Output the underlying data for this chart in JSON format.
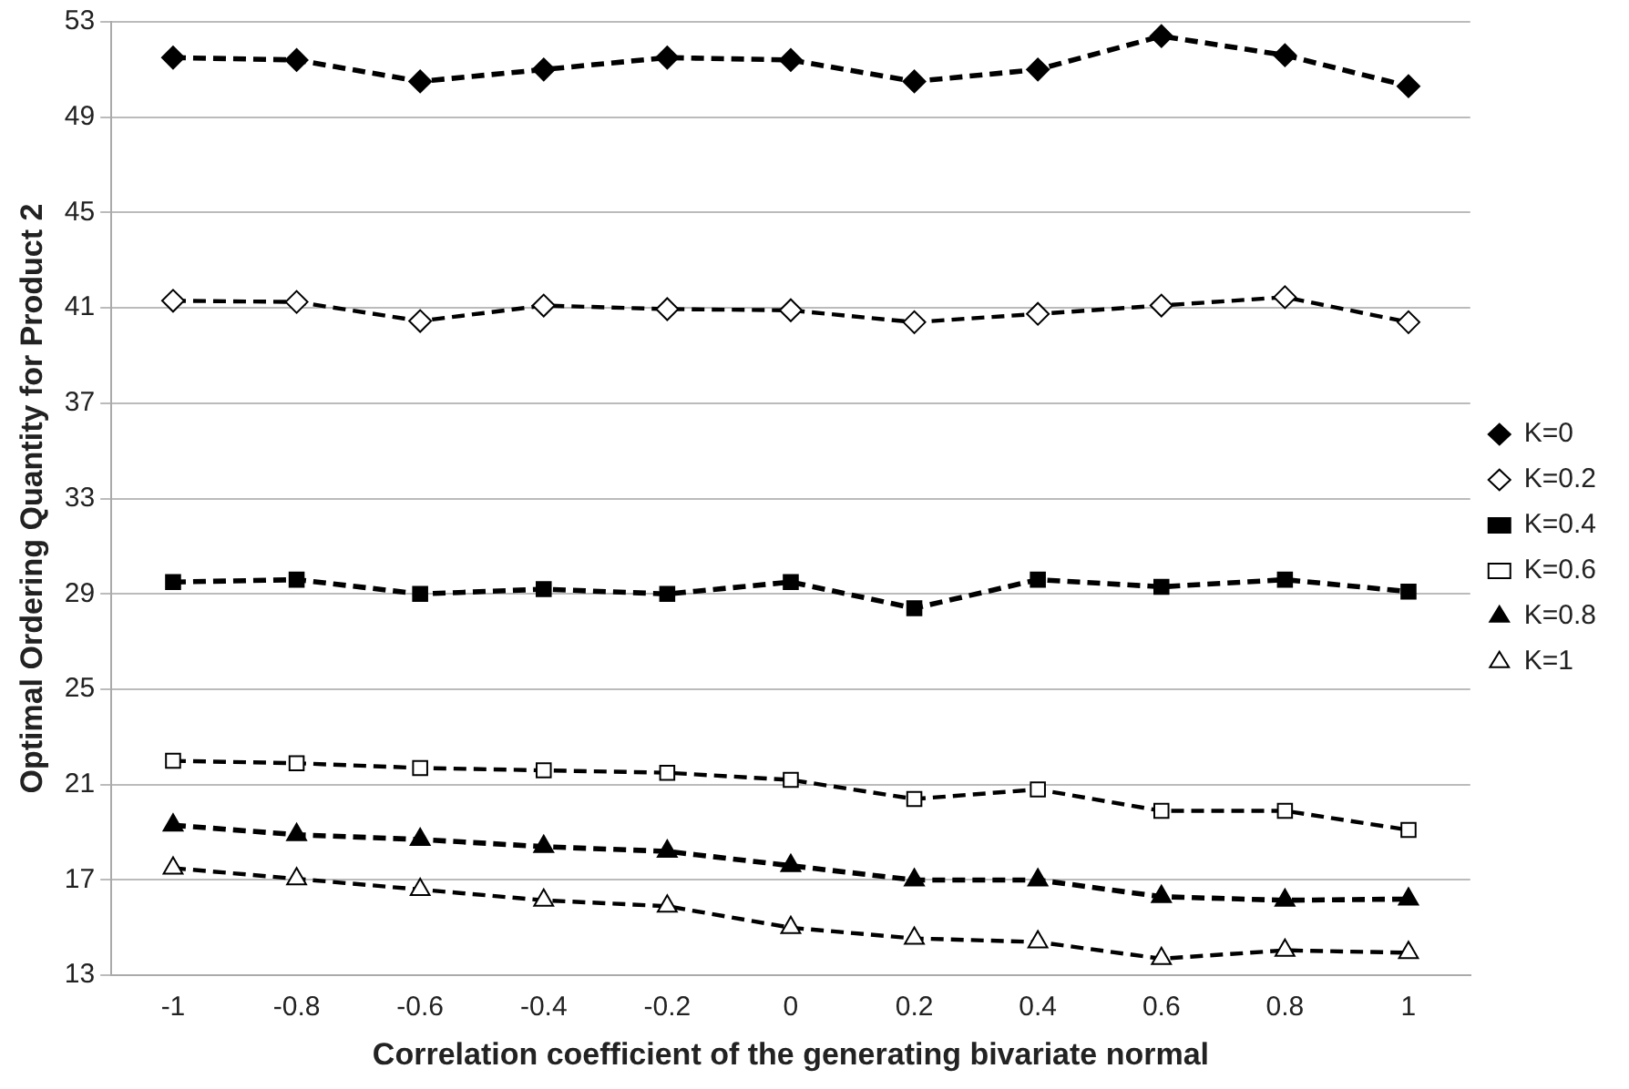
{
  "chart_data": {
    "type": "line",
    "xlabel": "Correlation coefficient of the generating bivariate normal",
    "ylabel": "Optimal Ordering Quantity for Product 2",
    "categories": [
      "-1",
      "-0.8",
      "-0.6",
      "-0.4",
      "-0.2",
      "0",
      "0.2",
      "0.4",
      "0.6",
      "0.8",
      "1"
    ],
    "series": [
      {
        "name": "K=0",
        "color": "#000000",
        "marker": "diamond",
        "values": [
          51.5,
          51.4,
          50.5,
          51.0,
          51.5,
          51.4,
          50.5,
          51.0,
          52.4,
          51.6,
          50.3
        ]
      },
      {
        "name": "K=0.2",
        "color": "#000000",
        "marker": "diamond",
        "values": [
          41.3,
          41.25,
          40.45,
          41.1,
          40.95,
          40.9,
          40.4,
          40.75,
          41.1,
          41.45,
          40.4
        ]
      },
      {
        "name": "K=0.4",
        "color": "#000000",
        "marker": "square",
        "values": [
          29.5,
          29.6,
          29.0,
          29.2,
          29.0,
          29.5,
          28.4,
          29.6,
          29.3,
          29.6,
          29.1
        ]
      },
      {
        "name": "K=0.6",
        "color": "#000000",
        "marker": "square",
        "values": [
          22.0,
          21.9,
          21.7,
          21.6,
          21.5,
          21.2,
          20.4,
          20.8,
          19.9,
          19.9,
          19.1
        ]
      },
      {
        "name": "K=0.8",
        "color": "#000000",
        "marker": "triangle",
        "values": [
          19.3,
          18.9,
          18.7,
          18.4,
          18.2,
          17.6,
          17.0,
          17.0,
          16.3,
          16.15,
          16.2
        ]
      },
      {
        "name": "K=1",
        "color": "#000000",
        "marker": "triangle",
        "values": [
          17.5,
          17.05,
          16.6,
          16.15,
          15.9,
          15.0,
          14.55,
          14.4,
          13.7,
          14.05,
          13.95
        ]
      }
    ],
    "ylim": [
      13,
      53
    ],
    "yticks": [
      13,
      17,
      21,
      25,
      29,
      33,
      37,
      41,
      45,
      49,
      53
    ],
    "grid": "y",
    "legend": "right",
    "line_style": "dashed"
  }
}
